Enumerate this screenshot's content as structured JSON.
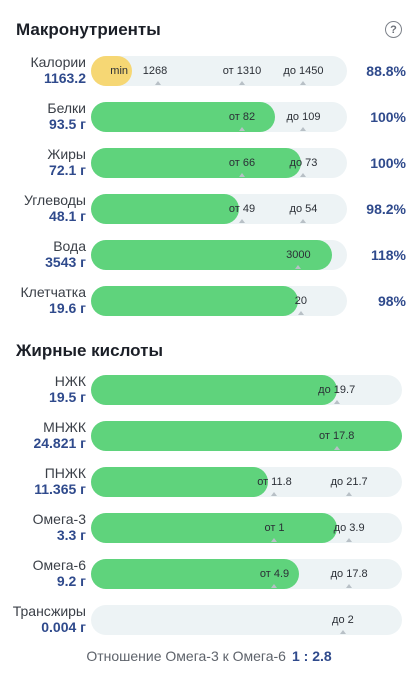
{
  "macros": {
    "title": "Макронутриенты",
    "help_icon": "?",
    "rows": [
      {
        "name": "Калории",
        "value": "1163.2",
        "pct": "88.8%",
        "color": "yellow",
        "fill_ratio": 0.16,
        "marks": [
          {
            "text": "min",
            "pos": 0.11
          },
          {
            "text": "1268",
            "pos": 0.25
          },
          {
            "text": "от 1310",
            "pos": 0.59
          },
          {
            "text": "до 1450",
            "pos": 0.83
          }
        ],
        "ticks": [
          0.26,
          0.59,
          0.83
        ]
      },
      {
        "name": "Белки",
        "value": "93.5 г",
        "pct": "100%",
        "color": "green",
        "fill_ratio": 0.72,
        "marks": [
          {
            "text": "от 82",
            "pos": 0.59
          },
          {
            "text": "до 109",
            "pos": 0.83
          }
        ],
        "ticks": [
          0.59,
          0.83
        ]
      },
      {
        "name": "Жиры",
        "value": "72.1 г",
        "pct": "100%",
        "color": "green",
        "fill_ratio": 0.82,
        "marks": [
          {
            "text": "от 66",
            "pos": 0.59
          },
          {
            "text": "до 73",
            "pos": 0.83
          }
        ],
        "ticks": [
          0.59,
          0.83
        ]
      },
      {
        "name": "Углеводы",
        "value": "48.1 г",
        "pct": "98.2%",
        "color": "green",
        "fill_ratio": 0.58,
        "marks": [
          {
            "text": "от 49",
            "pos": 0.59
          },
          {
            "text": "до 54",
            "pos": 0.83
          }
        ],
        "ticks": [
          0.59,
          0.83
        ]
      },
      {
        "name": "Вода",
        "value": "3543 г",
        "pct": "118%",
        "color": "green",
        "fill_ratio": 0.94,
        "marks": [
          {
            "text": "3000",
            "pos": 0.81
          }
        ],
        "ticks": [
          0.81
        ]
      },
      {
        "name": "Клетчатка",
        "value": "19.6 г",
        "pct": "98%",
        "color": "green",
        "fill_ratio": 0.81,
        "marks": [
          {
            "text": "20",
            "pos": 0.82
          }
        ],
        "ticks": [
          0.82
        ]
      }
    ]
  },
  "fatty": {
    "title": "Жирные кислоты",
    "rows": [
      {
        "name": "НЖК",
        "value": "19.5 г",
        "pct": "",
        "color": "green",
        "fill_ratio": 0.79,
        "marks": [
          {
            "text": "до 19.7",
            "pos": 0.79
          }
        ],
        "ticks": [
          0.79
        ]
      },
      {
        "name": "МНЖК",
        "value": "24.821 г",
        "pct": "",
        "color": "green",
        "fill_ratio": 1.0,
        "marks": [
          {
            "text": "от 17.8",
            "pos": 0.79
          }
        ],
        "ticks": [
          0.79
        ]
      },
      {
        "name": "ПНЖК",
        "value": "11.365 г",
        "pct": "",
        "color": "green",
        "fill_ratio": 0.57,
        "marks": [
          {
            "text": "от 11.8",
            "pos": 0.59
          },
          {
            "text": "до 21.7",
            "pos": 0.83
          }
        ],
        "ticks": [
          0.59,
          0.83
        ]
      },
      {
        "name": "Омега-3",
        "value": "3.3 г",
        "pct": "",
        "color": "green",
        "fill_ratio": 0.79,
        "marks": [
          {
            "text": "от 1",
            "pos": 0.59
          },
          {
            "text": "до 3.9",
            "pos": 0.83
          }
        ],
        "ticks": [
          0.59,
          0.83
        ]
      },
      {
        "name": "Омега-6",
        "value": "9.2 г",
        "pct": "",
        "color": "green",
        "fill_ratio": 0.67,
        "marks": [
          {
            "text": "от 4.9",
            "pos": 0.59
          },
          {
            "text": "до 17.8",
            "pos": 0.83
          }
        ],
        "ticks": [
          0.59,
          0.83
        ]
      },
      {
        "name": "Трансжиры",
        "value": "0.004 г",
        "pct": "",
        "color": "green",
        "fill_ratio": 0.0,
        "marks": [
          {
            "text": "до 2",
            "pos": 0.81
          }
        ],
        "ticks": [
          0.81
        ]
      }
    ]
  },
  "ratio": {
    "label": "Отношение Омега-3 к Омега-6",
    "value": "1 : 2.8"
  }
}
